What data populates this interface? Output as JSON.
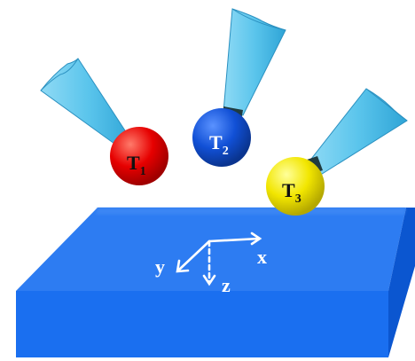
{
  "probes": [
    {
      "name": "T",
      "sub": "1",
      "color": "#e60000"
    },
    {
      "name": "T",
      "sub": "2",
      "color": "#1150d6"
    },
    {
      "name": "T",
      "sub": "3",
      "color": "#f2e600"
    }
  ],
  "axes": {
    "x": "x",
    "y": "y",
    "z": "z"
  },
  "colors": {
    "slab_top": "#2d7cf2",
    "slab_front": "#1a6ff0",
    "slab_side": "#0b56d0",
    "cone": "#5bc5ec",
    "axis": "#ffffff"
  }
}
